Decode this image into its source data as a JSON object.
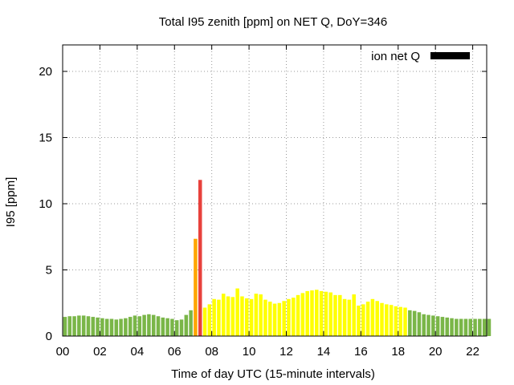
{
  "chart_data": {
    "type": "bar",
    "title": "Total I95 zenith [ppm] on NET Q, DoY=346",
    "xlabel": "Time of day UTC (15-minute intervals)",
    "ylabel": "I95 [ppm]",
    "xlim": [
      0,
      22.75
    ],
    "ylim": [
      0,
      22
    ],
    "x_interval_hours": 0.25,
    "grid": true,
    "legend": {
      "position": "top-right",
      "label": "ion net Q",
      "color": "#000000"
    },
    "x_ticks": [
      {
        "v": 0,
        "label": "00"
      },
      {
        "v": 2,
        "label": "02"
      },
      {
        "v": 4,
        "label": "04"
      },
      {
        "v": 6,
        "label": "06"
      },
      {
        "v": 8,
        "label": "08"
      },
      {
        "v": 10,
        "label": "10"
      },
      {
        "v": 12,
        "label": "12"
      },
      {
        "v": 14,
        "label": "14"
      },
      {
        "v": 16,
        "label": "16"
      },
      {
        "v": 18,
        "label": "18"
      },
      {
        "v": 20,
        "label": "20"
      },
      {
        "v": 22,
        "label": "22"
      }
    ],
    "y_ticks": [
      {
        "v": 0,
        "label": "0"
      },
      {
        "v": 5,
        "label": "5"
      },
      {
        "v": 10,
        "label": "10"
      },
      {
        "v": 15,
        "label": "15"
      },
      {
        "v": 20,
        "label": "20"
      }
    ],
    "colors": {
      "green": "#7ab648",
      "yellow": "#ffff00",
      "orange": "#ffa500",
      "red": "#e8413c"
    },
    "values": [
      1.45,
      1.5,
      1.5,
      1.55,
      1.55,
      1.5,
      1.45,
      1.4,
      1.35,
      1.3,
      1.3,
      1.25,
      1.3,
      1.35,
      1.45,
      1.55,
      1.5,
      1.6,
      1.65,
      1.6,
      1.5,
      1.4,
      1.35,
      1.3,
      1.2,
      1.25,
      1.6,
      1.95,
      7.35,
      11.8,
      2.15,
      2.4,
      2.8,
      2.75,
      3.2,
      3.0,
      2.95,
      3.6,
      3.0,
      2.85,
      2.8,
      3.2,
      3.15,
      2.75,
      2.6,
      2.45,
      2.5,
      2.65,
      2.8,
      2.9,
      3.1,
      3.25,
      3.4,
      3.45,
      3.5,
      3.4,
      3.35,
      3.3,
      3.1,
      3.1,
      2.8,
      2.75,
      3.15,
      2.3,
      2.4,
      2.6,
      2.8,
      2.65,
      2.5,
      2.4,
      2.35,
      2.25,
      2.2,
      2.15,
      1.95,
      1.9,
      1.8,
      1.65,
      1.6,
      1.55,
      1.5,
      1.45,
      1.4,
      1.35,
      1.3,
      1.3,
      1.3,
      1.3,
      1.3,
      1.3,
      1.3,
      1.3
    ],
    "bar_colors": [
      "green",
      "green",
      "green",
      "green",
      "green",
      "green",
      "green",
      "green",
      "green",
      "green",
      "green",
      "green",
      "green",
      "green",
      "green",
      "green",
      "green",
      "green",
      "green",
      "green",
      "green",
      "green",
      "green",
      "green",
      "green",
      "green",
      "green",
      "green",
      "orange",
      "red",
      "yellow",
      "yellow",
      "yellow",
      "yellow",
      "yellow",
      "yellow",
      "yellow",
      "yellow",
      "yellow",
      "yellow",
      "yellow",
      "yellow",
      "yellow",
      "yellow",
      "yellow",
      "yellow",
      "yellow",
      "yellow",
      "yellow",
      "yellow",
      "yellow",
      "yellow",
      "yellow",
      "yellow",
      "yellow",
      "yellow",
      "yellow",
      "yellow",
      "yellow",
      "yellow",
      "yellow",
      "yellow",
      "yellow",
      "yellow",
      "yellow",
      "yellow",
      "yellow",
      "yellow",
      "yellow",
      "yellow",
      "yellow",
      "yellow",
      "yellow",
      "yellow",
      "green",
      "green",
      "green",
      "green",
      "green",
      "green",
      "green",
      "green",
      "green",
      "green",
      "green",
      "green",
      "green",
      "green",
      "green",
      "green",
      "green",
      "green"
    ]
  }
}
